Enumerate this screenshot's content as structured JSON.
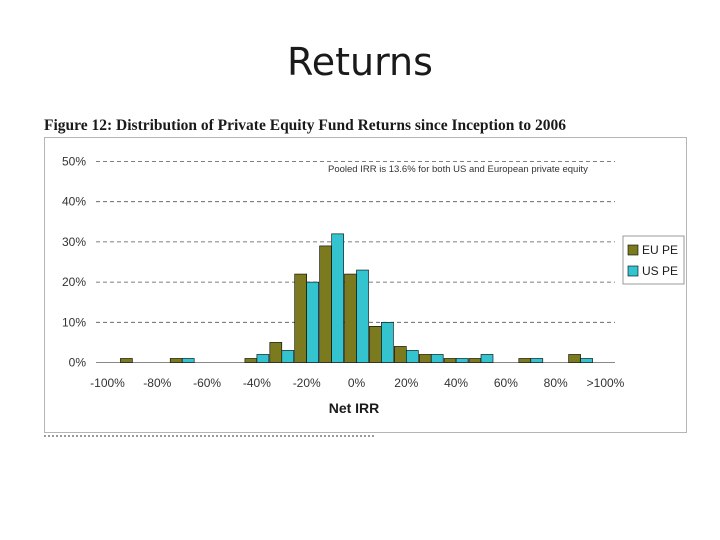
{
  "slide": {
    "title": "Returns"
  },
  "figure": {
    "caption": "Figure 12: Distribution of Private Equity Fund Returns since Inception to 2006"
  },
  "colors": {
    "eu": "#7b7a1f",
    "us": "#33c4d0",
    "grid": "#555555",
    "frame": "#b5b5b5"
  },
  "chart_data": {
    "type": "bar",
    "xlabel": "Net IRR",
    "ylabel": "",
    "ylim": [
      0,
      50
    ],
    "y_ticks": [
      "0%",
      "10%",
      "20%",
      "30%",
      "40%",
      "50%"
    ],
    "grid": true,
    "legend_position": "right",
    "annotation": "Pooled IRR is 13.6% for both US and European private equity",
    "categories": [
      "-100%",
      "-90%",
      "-80%",
      "-70%",
      "-60%",
      "-50%",
      "-40%",
      "-30%",
      "-20%",
      "-10%",
      "0%",
      "10%",
      "20%",
      "30%",
      "40%",
      "50%",
      "60%",
      "70%",
      "80%",
      "90%",
      ">100%"
    ],
    "x_tick_labels": [
      "-100%",
      "-80%",
      "-60%",
      "-40%",
      "-20%",
      "0%",
      "20%",
      "40%",
      "60%",
      "80%",
      ">100%"
    ],
    "series": [
      {
        "name": "EU PE",
        "values": [
          0,
          1,
          0,
          1,
          0,
          0,
          1,
          5,
          22,
          29,
          22,
          9,
          4,
          2,
          1,
          1,
          0,
          1,
          0,
          2,
          0
        ]
      },
      {
        "name": "US PE",
        "values": [
          0,
          0,
          0,
          1,
          0,
          0,
          2,
          3,
          20,
          32,
          23,
          10,
          3,
          2,
          1,
          2,
          0,
          1,
          0,
          1,
          0
        ]
      }
    ]
  }
}
